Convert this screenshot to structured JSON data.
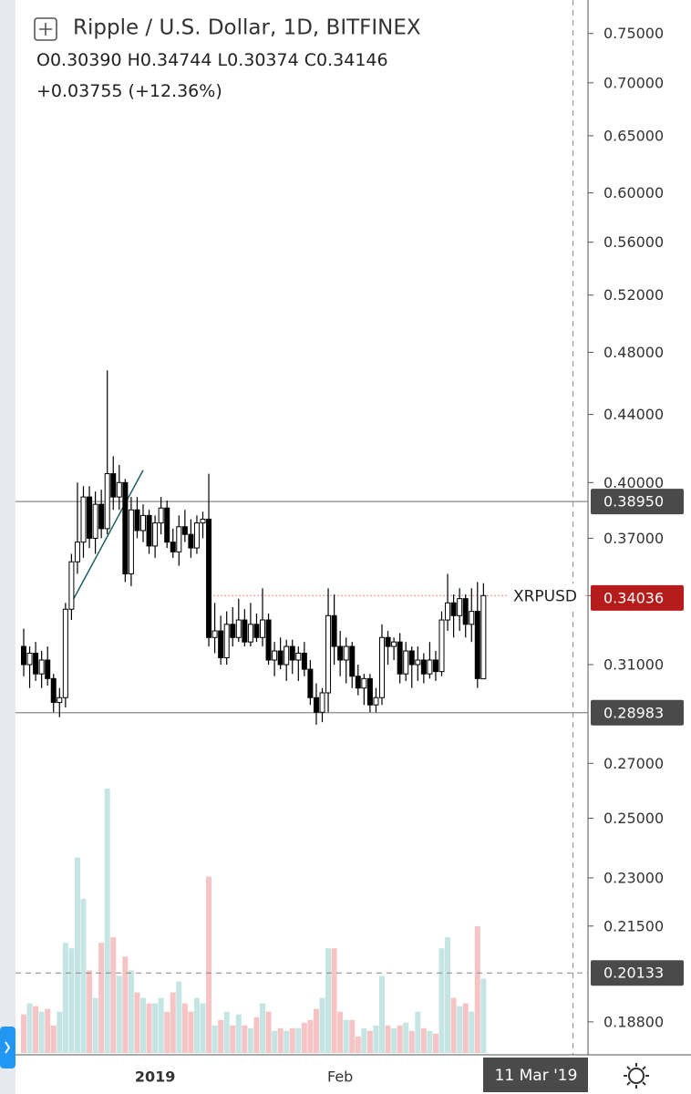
{
  "chart_data": {
    "type": "candlestick",
    "title": "Ripple / U.S. Dollar, 1D, BITFINEX",
    "ohlc_legend": [
      {
        "key": "O",
        "value": 0.3039,
        "label": "0.30390"
      },
      {
        "key": "H",
        "value": 0.34744,
        "label": "0.34744"
      },
      {
        "key": "L",
        "value": 0.30374,
        "label": "0.30374"
      },
      {
        "key": "C",
        "value": 0.34146,
        "label": "0.34146"
      }
    ],
    "change": {
      "value": 0.03755,
      "label": "+0.03755"
    },
    "change_pct": {
      "value": 12.36,
      "label": "(+12.36%)"
    },
    "symbol": "XRPUSD",
    "categories": [
      null,
      null,
      null,
      null,
      null,
      null,
      null,
      null,
      null,
      null,
      null,
      null,
      null,
      null,
      null,
      null,
      null,
      null,
      null,
      null,
      null,
      null,
      "2019",
      null,
      null,
      null,
      null,
      null,
      null,
      null,
      null,
      null,
      null,
      null,
      null,
      null,
      null,
      null,
      null,
      null,
      null,
      null,
      null,
      null,
      null,
      null,
      null,
      null,
      null,
      null,
      null,
      null,
      null,
      "Feb",
      null,
      null,
      null,
      null,
      null,
      null,
      null,
      null,
      null,
      null,
      null,
      null,
      null,
      null,
      null,
      null,
      null,
      null,
      null,
      null,
      null,
      null,
      null,
      null
    ],
    "open": [
      0.318,
      0.31,
      0.315,
      0.306,
      0.312,
      0.304,
      0.294,
      0.296,
      0.335,
      0.358,
      0.368,
      0.392,
      0.37,
      0.388,
      0.375,
      0.405,
      0.392,
      0.4,
      0.352,
      0.385,
      0.374,
      0.382,
      0.366,
      0.378,
      0.386,
      0.368,
      0.363,
      0.376,
      0.372,
      0.365,
      0.378,
      0.38,
      0.322,
      0.325,
      0.313,
      0.328,
      0.322,
      0.33,
      0.32,
      0.328,
      0.322,
      0.33,
      0.312,
      0.316,
      0.31,
      0.318,
      0.312,
      0.315,
      0.308,
      0.296,
      0.29,
      0.298,
      0.332,
      0.318,
      0.312,
      0.318,
      0.305,
      0.3,
      0.304,
      0.293,
      0.296,
      0.322,
      0.318,
      0.32,
      0.306,
      0.316,
      0.31,
      0.312,
      0.306,
      0.312,
      0.307,
      0.33,
      0.338,
      0.332,
      0.34,
      0.328,
      0.334,
      0.3039
    ],
    "high": [
      0.326,
      0.318,
      0.32,
      0.316,
      0.318,
      0.306,
      0.3,
      0.338,
      0.362,
      0.4,
      0.398,
      0.398,
      0.395,
      0.396,
      0.468,
      0.415,
      0.41,
      0.402,
      0.392,
      0.392,
      0.388,
      0.385,
      0.382,
      0.392,
      0.39,
      0.375,
      0.382,
      0.385,
      0.38,
      0.382,
      0.384,
      0.405,
      0.338,
      0.332,
      0.334,
      0.336,
      0.34,
      0.335,
      0.338,
      0.333,
      0.345,
      0.333,
      0.32,
      0.322,
      0.321,
      0.321,
      0.318,
      0.32,
      0.312,
      0.302,
      0.3,
      0.345,
      0.342,
      0.325,
      0.322,
      0.32,
      0.31,
      0.306,
      0.306,
      0.3,
      0.328,
      0.325,
      0.322,
      0.324,
      0.32,
      0.318,
      0.318,
      0.315,
      0.32,
      0.316,
      0.334,
      0.352,
      0.342,
      0.345,
      0.342,
      0.345,
      0.348,
      0.34744
    ],
    "low": [
      0.305,
      0.3,
      0.303,
      0.3,
      0.301,
      0.29,
      0.288,
      0.292,
      0.33,
      0.352,
      0.36,
      0.365,
      0.362,
      0.37,
      0.372,
      0.385,
      0.385,
      0.348,
      0.346,
      0.37,
      0.368,
      0.362,
      0.36,
      0.372,
      0.365,
      0.36,
      0.356,
      0.368,
      0.36,
      0.362,
      0.37,
      0.318,
      0.315,
      0.31,
      0.31,
      0.318,
      0.32,
      0.318,
      0.318,
      0.32,
      0.318,
      0.31,
      0.305,
      0.308,
      0.303,
      0.306,
      0.303,
      0.305,
      0.293,
      0.285,
      0.286,
      0.29,
      0.31,
      0.305,
      0.302,
      0.3,
      0.297,
      0.293,
      0.29,
      0.29,
      0.293,
      0.31,
      0.312,
      0.302,
      0.303,
      0.3,
      0.303,
      0.302,
      0.304,
      0.303,
      0.305,
      0.325,
      0.322,
      0.325,
      0.322,
      0.32,
      0.3,
      0.30374
    ],
    "close": [
      0.31,
      0.315,
      0.306,
      0.312,
      0.304,
      0.294,
      0.296,
      0.335,
      0.358,
      0.368,
      0.392,
      0.37,
      0.388,
      0.375,
      0.405,
      0.392,
      0.4,
      0.352,
      0.385,
      0.374,
      0.382,
      0.366,
      0.378,
      0.386,
      0.368,
      0.363,
      0.376,
      0.372,
      0.365,
      0.378,
      0.38,
      0.322,
      0.325,
      0.313,
      0.328,
      0.322,
      0.33,
      0.32,
      0.328,
      0.322,
      0.33,
      0.312,
      0.316,
      0.31,
      0.318,
      0.312,
      0.315,
      0.308,
      0.296,
      0.29,
      0.298,
      0.332,
      0.318,
      0.312,
      0.318,
      0.305,
      0.3,
      0.304,
      0.293,
      0.296,
      0.322,
      0.318,
      0.32,
      0.306,
      0.316,
      0.31,
      0.312,
      0.306,
      0.312,
      0.307,
      0.33,
      0.338,
      0.332,
      0.34,
      0.328,
      0.334,
      0.304,
      0.34146
    ],
    "volume": [
      14,
      18,
      17,
      15,
      16,
      10,
      15,
      40,
      38,
      71,
      56,
      30,
      20,
      40,
      96,
      42,
      28,
      35,
      30,
      22,
      20,
      18,
      18,
      20,
      15,
      22,
      26,
      18,
      15,
      20,
      18,
      64,
      10,
      12,
      15,
      10,
      14,
      10,
      9,
      13,
      18,
      15,
      8,
      9,
      8,
      9,
      9,
      11,
      12,
      16,
      20,
      38,
      38,
      15,
      12,
      12,
      6,
      9,
      8,
      10,
      28,
      10,
      9,
      10,
      11,
      8,
      15,
      9,
      8,
      7,
      38,
      42,
      20,
      17,
      18,
      15,
      46,
      27
    ],
    "up_color": "#ffffff",
    "down_color": "#000000",
    "wick_color": "#000000",
    "volume_up_color": "#c4e5e3",
    "volume_down_color": "#f6c4c4",
    "log_scale": true,
    "grid": false,
    "ylim": [
      0.18,
      0.786
    ],
    "yticks": [
      {
        "value": 0.75,
        "label": "0.75000"
      },
      {
        "value": 0.7,
        "label": "0.70000"
      },
      {
        "value": 0.65,
        "label": "0.65000"
      },
      {
        "value": 0.6,
        "label": "0.60000"
      },
      {
        "value": 0.56,
        "label": "0.56000"
      },
      {
        "value": 0.52,
        "label": "0.52000"
      },
      {
        "value": 0.48,
        "label": "0.48000"
      },
      {
        "value": 0.44,
        "label": "0.44000"
      },
      {
        "value": 0.4,
        "label": "0.40000"
      },
      {
        "value": 0.37,
        "label": "0.37000"
      },
      {
        "value": 0.31,
        "label": "0.31000"
      },
      {
        "value": 0.27,
        "label": "0.27000"
      },
      {
        "value": 0.25,
        "label": "0.25000"
      },
      {
        "value": 0.23,
        "label": "0.23000"
      },
      {
        "value": 0.215,
        "label": "0.21500"
      },
      {
        "value": 0.188,
        "label": "0.18800"
      }
    ],
    "levels": [
      {
        "value": 0.3895,
        "label": "0.38950"
      },
      0.28983
    ],
    "last_price": 0.34146,
    "bid_price": 0.34036,
    "bid_color": "#b71c1c",
    "trendline": {
      "x": [
        8,
        20
      ],
      "y": [
        0.338,
        0.407
      ],
      "color": "#1f5f5f"
    },
    "crosshair": {
      "x_index": 92,
      "x_label": "11 Mar '19",
      "y": 0.20133
    }
  }
}
